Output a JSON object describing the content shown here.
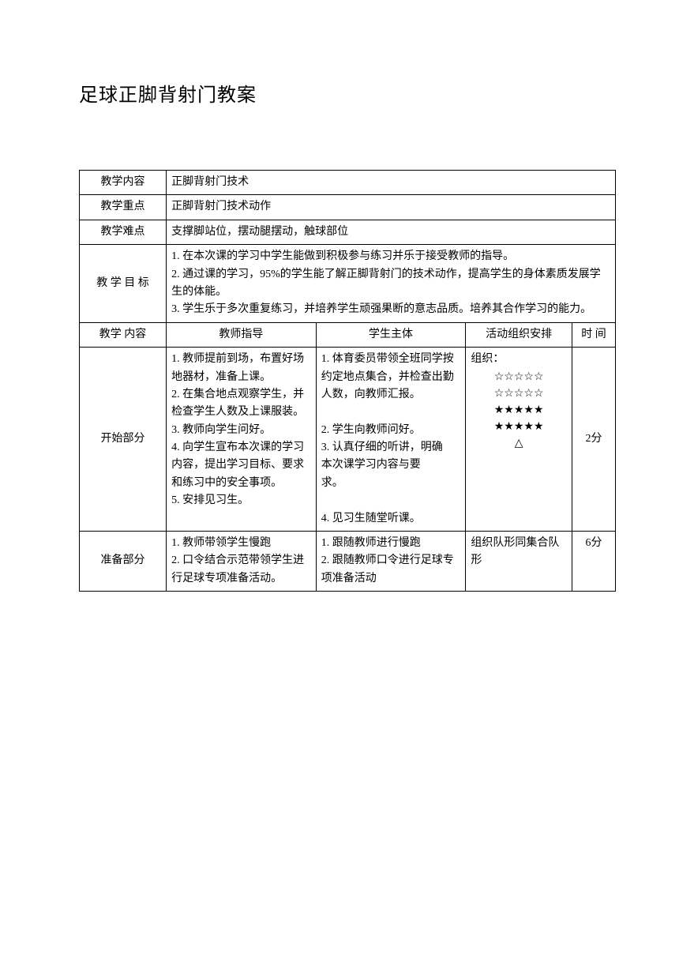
{
  "title": "足球正脚背射门教案",
  "rows": {
    "content_label": "教学内容",
    "content_value": "正脚背射门技术",
    "focus_label": "教学重点",
    "focus_value": "正脚背射门技术动作",
    "difficulty_label": "教学难点",
    "difficulty_value": "支撑脚站位，摆动腿摆动，触球部位",
    "goal_label": "教 学 目 标",
    "goal_value": "1. 在本次课的学习中学生能做到积极参与练习并乐于接受教师的指导。\n2. 通过课的学习，95%的学生能了解正脚背射门的技术动作，提高学生的身体素质发展学生的体能。\n3. 学生乐于多次重复练习，并培养学生顽强果断的意志品质。培养其合作学习的能力。"
  },
  "headers": {
    "c1": "教学 内容",
    "c2": "教师指导",
    "c3": "学生主体",
    "c4": "活动组织安排",
    "c5": "时 间"
  },
  "section_start": {
    "label": "开始部分",
    "teacher": "1. 教师提前到场，布置好场地器材，准备上课。\n2. 在集合地点观察学生，并检查学生人数及上课服装。\n3. 教师向学生问好。\n4. 向学生宣布本次课的学习内容，提出学习目标、要求和练习中的安全事项。\n5. 安排见习生。",
    "student": "  1. 体育委员带领全班同学按约定地点集合，并检查出勤人数，向教师汇报。\n\n2. 学生向教师问好。\n3. 认真仔细的听讲，明确\n    本次课学习内容与要\n    求。\n\n4. 见习生随堂听课。",
    "org_label": "组织：",
    "org_stars": "☆☆☆☆☆\n☆☆☆☆☆\n★★★★★\n★★★★★\n△",
    "time": "2分"
  },
  "section_prep": {
    "label": "准备部分",
    "teacher": "1. 教师带领学生慢跑\n2. 口令结合示范带领学生进行足球专项准备活动。",
    "student": "1. 跟随教师进行慢跑\n  2. 跟随教师口令进行足球专项准备活动",
    "org": "组织队形同集合队形",
    "time": "6分"
  }
}
